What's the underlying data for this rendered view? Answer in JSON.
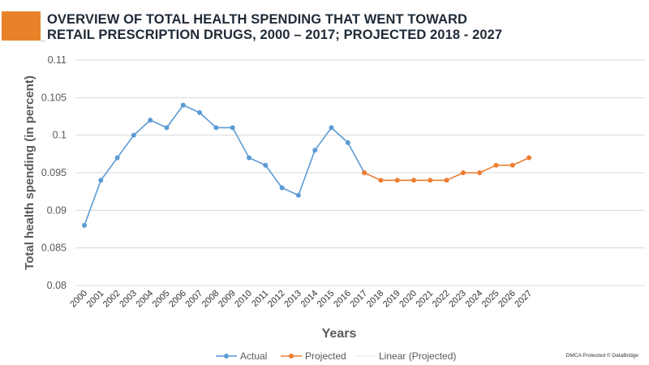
{
  "header": {
    "title_line1": "OVERVIEW OF TOTAL HEALTH SPENDING THAT WENT TOWARD",
    "title_line2": "RETAIL PRESCRIPTION DRUGS, 2000 – 2017; PROJECTED 2018 - 2027"
  },
  "watermark": "DMCA Protected © DataBridge",
  "colors": {
    "accent": "#e8822a",
    "actual": "#5b9bd5",
    "projected": "#ed7d31",
    "grid": "#d9d9d9",
    "title": "#1f2a36"
  },
  "chart_data": {
    "type": "line",
    "title": "OVERVIEW OF TOTAL HEALTH SPENDING THAT WENT TOWARD RETAIL PRESCRIPTION DRUGS, 2000 – 2017; PROJECTED 2018 - 2027",
    "xlabel": "Years",
    "ylabel": "Total health spending (in percent)",
    "ylim": [
      0.08,
      0.11
    ],
    "yticks": [
      "0.08",
      "0.085",
      "0.09",
      "0.095",
      "0.1",
      "0.105",
      "0.11"
    ],
    "categories": [
      "2000",
      "2001",
      "2002",
      "2003",
      "2004",
      "2005",
      "2006",
      "2007",
      "2008",
      "2009",
      "2010",
      "2011",
      "2012",
      "2013",
      "2014",
      "2015",
      "2016",
      "2017",
      "2018",
      "2019",
      "2020",
      "2021",
      "2022",
      "2023",
      "2024",
      "2025",
      "2026",
      "2027"
    ],
    "grid": true,
    "legend_position": "bottom",
    "series": [
      {
        "name": "Actual",
        "x": [
          "2000",
          "2001",
          "2002",
          "2003",
          "2004",
          "2005",
          "2006",
          "2007",
          "2008",
          "2009",
          "2010",
          "2011",
          "2012",
          "2013",
          "2014",
          "2015",
          "2016",
          "2017"
        ],
        "values": [
          0.088,
          0.094,
          0.097,
          0.1,
          0.102,
          0.101,
          0.104,
          0.103,
          0.101,
          0.101,
          0.097,
          0.096,
          0.093,
          0.092,
          0.098,
          0.101,
          0.099,
          0.095
        ]
      },
      {
        "name": "Projected",
        "x": [
          "2017",
          "2018",
          "2019",
          "2020",
          "2021",
          "2022",
          "2023",
          "2024",
          "2025",
          "2026",
          "2027"
        ],
        "values": [
          0.095,
          0.094,
          0.094,
          0.094,
          0.094,
          0.094,
          0.095,
          0.095,
          0.096,
          0.096,
          0.097
        ]
      }
    ],
    "legend": [
      "Actual",
      "Projected",
      "Linear (Projected)"
    ]
  }
}
